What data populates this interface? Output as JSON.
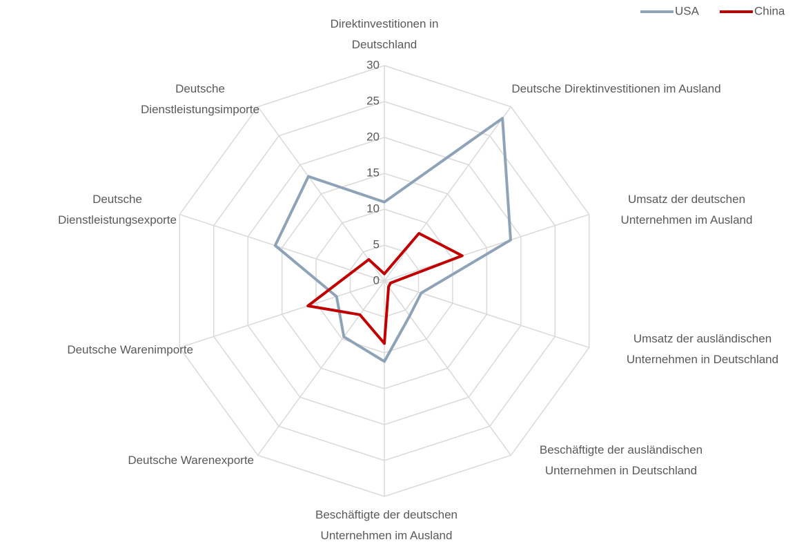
{
  "chart_data": {
    "type": "radar",
    "categories": [
      "Direktinvestitionen in Deutschland",
      "Deutsche Direktinvestitionen im Ausland",
      "Umsatz der deutschen Unternehmen im Ausland",
      "Umsatz der ausländischen Unternehmen in Deutschland",
      "Beschäftigte der ausländischen Unternehmen in Deutschland",
      "Beschäftigte der deutschen Unternehmen im Ausland",
      "Deutsche Warenexporte",
      "Deutsche Warenimporte",
      "Deutsche Dienstleistungsexporte",
      "Deutsche Dienstleistungsimporte"
    ],
    "series": [
      {
        "name": "USA",
        "color": "#8ea3b8",
        "values": [
          11,
          28,
          18.5,
          5.4,
          6,
          11.2,
          9.6,
          7,
          16,
          18
        ]
      },
      {
        "name": "China",
        "color": "#c00000",
        "values": [
          1,
          8.2,
          11.4,
          0.9,
          1,
          8.7,
          5.8,
          11.2,
          4.5,
          3.7
        ]
      }
    ],
    "ylim": [
      0,
      30
    ],
    "yticks": [
      0,
      5,
      10,
      15,
      20,
      25,
      30
    ],
    "grid": true,
    "legend": "top-right"
  }
}
